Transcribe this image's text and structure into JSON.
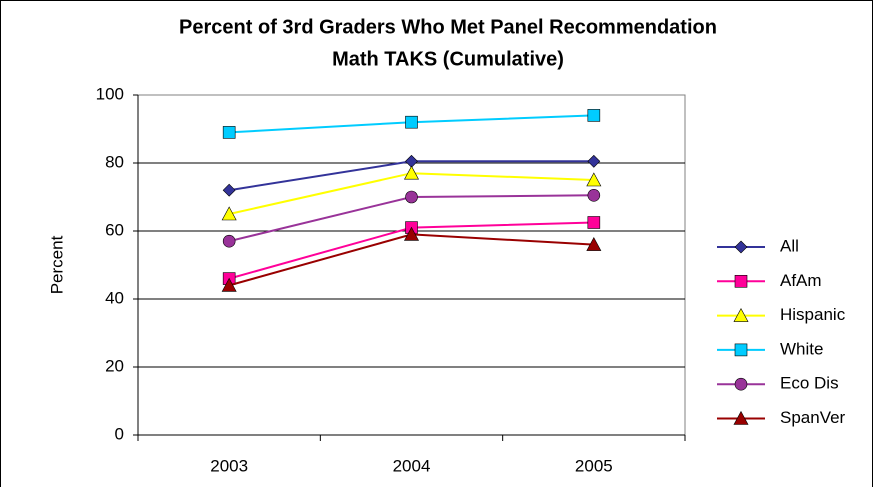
{
  "chart_data": {
    "type": "line",
    "title": "Percent of 3rd Graders Who Met Panel Recommendation",
    "subtitle": "Math TAKS (Cumulative)",
    "y_label": "Percent",
    "categories": [
      "2003",
      "2004",
      "2005"
    ],
    "series": [
      {
        "name": "All",
        "color": "#333399",
        "marker": "diamond",
        "values": [
          72,
          80.5,
          80.5
        ]
      },
      {
        "name": "AfAm",
        "color": "#ff0099",
        "marker": "square",
        "values": [
          46,
          61,
          62.5
        ]
      },
      {
        "name": "Hispanic",
        "color": "#ffff00",
        "marker": "triangle",
        "values": [
          65,
          77,
          75
        ]
      },
      {
        "name": "White",
        "color": "#00ccff",
        "marker": "square",
        "values": [
          89,
          92,
          94
        ]
      },
      {
        "name": "Eco Dis",
        "color": "#993399",
        "marker": "circle",
        "values": [
          57,
          70,
          70.5
        ]
      },
      {
        "name": "SpanVer",
        "color": "#990000",
        "marker": "triangle",
        "values": [
          44,
          59,
          56
        ]
      }
    ],
    "ylim": [
      0,
      100
    ],
    "yticks": [
      0,
      20,
      40,
      60,
      80,
      100
    ],
    "grid": true,
    "legend": "right"
  }
}
